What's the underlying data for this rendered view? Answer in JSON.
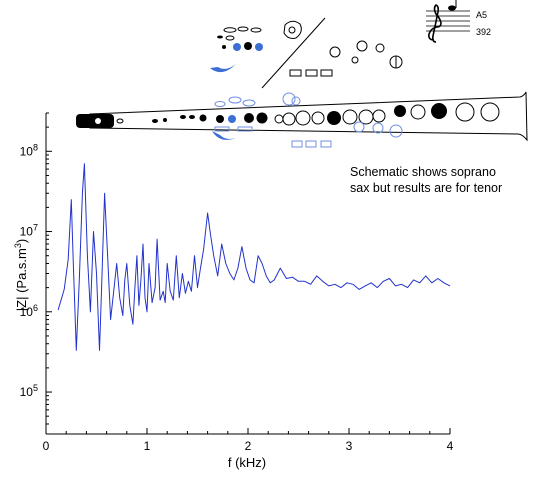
{
  "annotation": {
    "line1": "Schematic shows soprano",
    "line2": "sax but results are for tenor"
  },
  "note_box": {
    "note_name": "A5",
    "frequency": "392"
  },
  "colors": {
    "trace": "#2233cc",
    "open_key": "#3b6fd6",
    "ghost_key": "#6f8fe0",
    "axis": "#000000"
  },
  "chart_data": {
    "type": "line",
    "title": "",
    "xlabel": "f (kHz)",
    "ylabel_main": "|Z| (Pa.s.m",
    "ylabel_sup": "3",
    "ylabel_close": ")",
    "x_scale": "linear",
    "y_scale": "log",
    "xlim": [
      0,
      4
    ],
    "ylim": [
      30000,
      300000000
    ],
    "x_ticks": [
      0,
      1,
      2,
      3,
      4
    ],
    "x_tick_labels": [
      "0",
      "1",
      "2",
      "3",
      "4"
    ],
    "y_ticks": [
      100000,
      1000000,
      10000000,
      100000000
    ],
    "y_tick_labels": [
      {
        "base": "10",
        "exp": "5"
      },
      {
        "base": "10",
        "exp": "6"
      },
      {
        "base": "10",
        "exp": "7"
      },
      {
        "base": "10",
        "exp": "8"
      }
    ],
    "grid": false,
    "series": [
      {
        "x": [
          0.12,
          0.18,
          0.22,
          0.25,
          0.27,
          0.3,
          0.33,
          0.36,
          0.38,
          0.41,
          0.44,
          0.47,
          0.5,
          0.53,
          0.55,
          0.58,
          0.61,
          0.64,
          0.67,
          0.7,
          0.73,
          0.76,
          0.78,
          0.8,
          0.83,
          0.86,
          0.88,
          0.9,
          0.92,
          0.94,
          0.96,
          0.98,
          1.0,
          1.02,
          1.05,
          1.08,
          1.1,
          1.13,
          1.16,
          1.18,
          1.2,
          1.23,
          1.26,
          1.29,
          1.32,
          1.35,
          1.38,
          1.41,
          1.44,
          1.47,
          1.5,
          1.53,
          1.56,
          1.6,
          1.63,
          1.66,
          1.7,
          1.74,
          1.78,
          1.82,
          1.86,
          1.9,
          1.94,
          1.98,
          2.02,
          2.06,
          2.1,
          2.14,
          2.18,
          2.22,
          2.26,
          2.32,
          2.38,
          2.44,
          2.5,
          2.56,
          2.62,
          2.68,
          2.74,
          2.8,
          2.86,
          2.92,
          2.98,
          3.04,
          3.1,
          3.16,
          3.22,
          3.28,
          3.34,
          3.4,
          3.46,
          3.52,
          3.58,
          3.64,
          3.7,
          3.76,
          3.82,
          3.88,
          3.94,
          4.0
        ],
        "y": [
          1050000,
          1900000,
          4500000,
          25000000,
          4000000,
          330000,
          2500000,
          30000000,
          70000000,
          5000000,
          1000000,
          10000000,
          3000000,
          330000,
          2000000,
          30000000,
          5000000,
          800000,
          1800000,
          4000000,
          1500000,
          900000,
          2500000,
          4000000,
          1200000,
          700000,
          2000000,
          5000000,
          1200000,
          2500000,
          7000000,
          1500000,
          1000000,
          4000000,
          1300000,
          2000000,
          8000000,
          1400000,
          1800000,
          1300000,
          4000000,
          1800000,
          1400000,
          5000000,
          1500000,
          3000000,
          1700000,
          2400000,
          1800000,
          5000000,
          2000000,
          3500000,
          6000000,
          17000000,
          9000000,
          5000000,
          2800000,
          7000000,
          4000000,
          3000000,
          2500000,
          3500000,
          6500000,
          3500000,
          2500000,
          2300000,
          5000000,
          4000000,
          2800000,
          2300000,
          2500000,
          3500000,
          2600000,
          2700000,
          2400000,
          2400000,
          2200000,
          2800000,
          2400000,
          2100000,
          2200000,
          2000000,
          2300000,
          2200000,
          1900000,
          2100000,
          2300000,
          2000000,
          2400000,
          2600000,
          2100000,
          2200000,
          2000000,
          2500000,
          2300000,
          2800000,
          2300000,
          2600000,
          2300000,
          2100000
        ]
      }
    ]
  }
}
